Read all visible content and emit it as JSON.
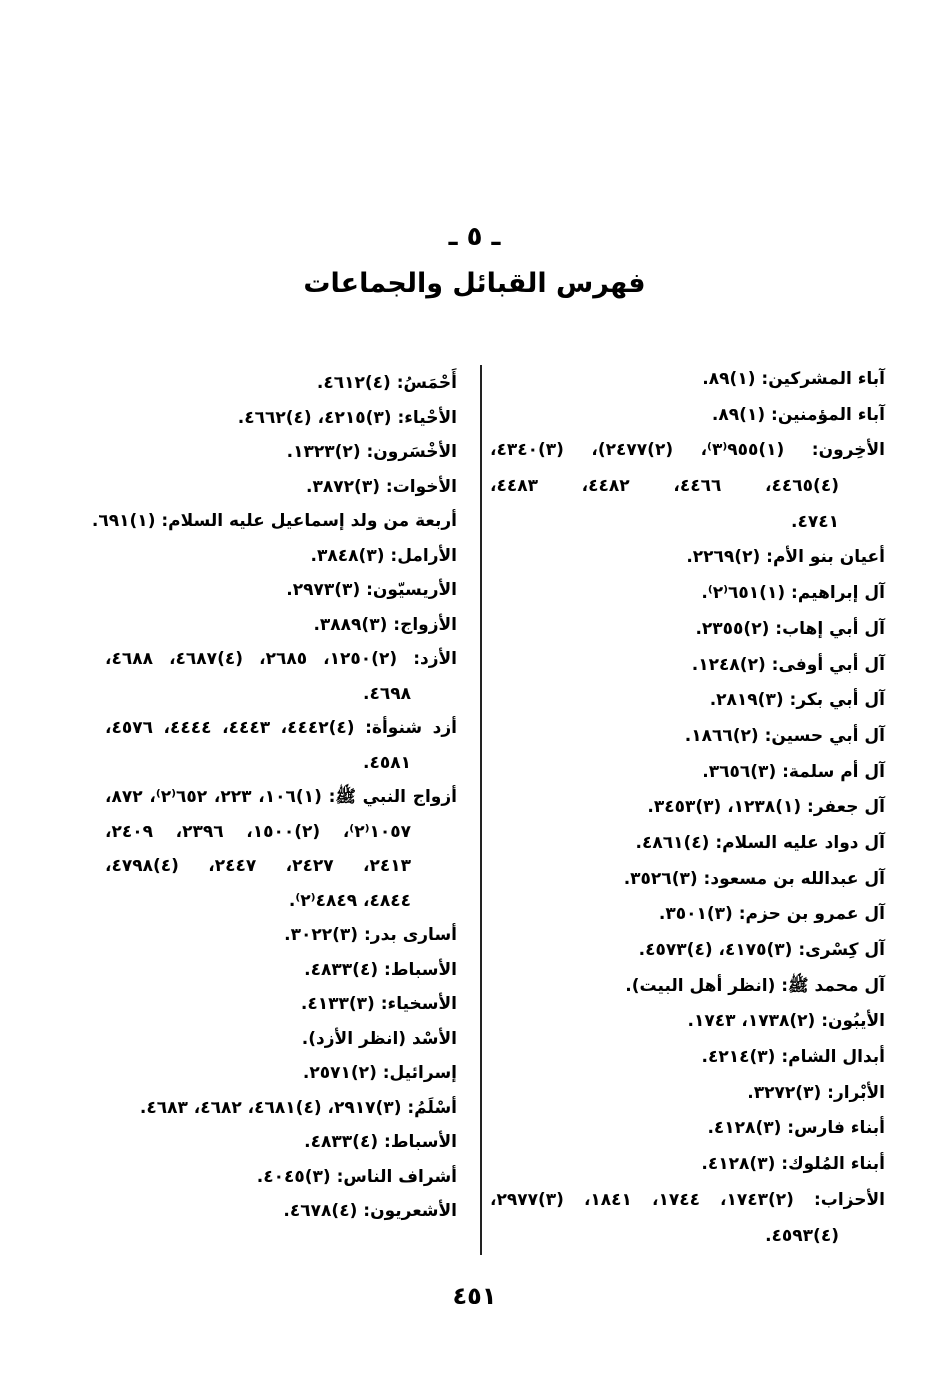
{
  "header": {
    "section_number": "ـ ٥ ـ",
    "title": "فهرس القبائل والجماعات"
  },
  "columns": {
    "right": [
      {
        "lines": [
          "آباء المشركين: (١)٨٩."
        ]
      },
      {
        "lines": [
          "آباء المؤمنين: (١)٨٩."
        ]
      },
      {
        "lines": [
          "الأخِرون: (١)٩٥٥⁽٣⁾، (٢)٢٤٧٧)، (٣)٤٣٤٠،",
          "(٤)٤٤٦٥، ٤٤٦٦، ٤٤٨٢، ٤٤٨٣،",
          "٤٧٤١."
        ]
      },
      {
        "lines": [
          "أعيان بنو الأم: (٢)٢٢٦٩."
        ]
      },
      {
        "lines": [
          "آل إبراهيم: (١)٦٥١⁽٢⁾."
        ]
      },
      {
        "lines": [
          "آل أبي إهاب: (٢)٢٣٥٥."
        ]
      },
      {
        "lines": [
          "آل أبي أوفى: (٢)١٢٤٨."
        ]
      },
      {
        "lines": [
          "آل أبي بكر: (٣)٢٨١٩."
        ]
      },
      {
        "lines": [
          "آل أبي حسين: (٢)١٨٦٦."
        ]
      },
      {
        "lines": [
          "آل أم سلمة: (٣)٣٦٥٦."
        ]
      },
      {
        "lines": [
          "آل جعفر: (١)١٢٣٨، (٣)٣٤٥٣."
        ]
      },
      {
        "lines": [
          "آل دواد عليه السلام: (٤)٤٨٦١."
        ]
      },
      {
        "lines": [
          "آل عبدالله بن مسعود: (٣)٣٥٢٦."
        ]
      },
      {
        "lines": [
          "آل عمرو بن حزم: (٣)٣٥٠١."
        ]
      },
      {
        "lines": [
          "آل كِسْرى: (٣)٤١٧٥، (٤)٤٥٧٣."
        ]
      },
      {
        "lines": [
          "آل محمد ﷺ: (انظر أهل البيت)."
        ]
      },
      {
        "lines": [
          "الأيبُون: (٢)١٧٣٨، ١٧٤٣."
        ]
      },
      {
        "lines": [
          "أبدال الشام: (٣)٤٢١٤."
        ]
      },
      {
        "lines": [
          "الأبْرار: (٣)٣٢٧٢."
        ]
      },
      {
        "lines": [
          "أبناء فارس: (٣)٤١٢٨."
        ]
      },
      {
        "lines": [
          "أبناء المُلوك: (٣)٤١٢٨."
        ]
      },
      {
        "lines": [
          "الأحزاب: (٢)١٧٤٣، ١٧٤٤، ١٨٤١، (٣)٢٩٧٧،",
          "(٤)٤٥٩٣."
        ]
      }
    ],
    "left": [
      {
        "lines": [
          "أَحْمَسُ: (٤)٤٦١٢."
        ]
      },
      {
        "lines": [
          "الأحْياء: (٣)٤٢١٥، (٤)٤٦٦٢."
        ]
      },
      {
        "lines": [
          "الأخْسَرون: (٢)١٣٢٣."
        ]
      },
      {
        "lines": [
          "الأخوات: (٣)٣٨٧٢."
        ]
      },
      {
        "lines": [
          "أربعة من ولد إسماعيل عليه السلام: (١)٦٩١."
        ]
      },
      {
        "lines": [
          "الأرامل: (٣)٣٨٤٨."
        ]
      },
      {
        "lines": [
          "الأريسيّون: (٣)٢٩٧٣."
        ]
      },
      {
        "lines": [
          "الأزواج: (٣)٣٨٨٩."
        ]
      },
      {
        "lines": [
          "الأزد: (٢)١٢٥٠، ٢٦٨٥، (٤)٤٦٨٧، ٤٦٨٨،",
          "٤٦٩٨."
        ]
      },
      {
        "lines": [
          "أزد شنوأة: (٤)٤٤٤٢، ٤٤٤٣، ٤٤٤٤، ٤٥٧٦،",
          "٤٥٨١."
        ]
      },
      {
        "lines": [
          "أزواج النبي ﷺ: (١)١٠٦، ٢٢٣، ٦٥٢⁽٢⁾، ٨٧٢،",
          "١٠٥٧⁽٢⁾، (٢)١٥٠٠، ٢٣٩٦، ٢٤٠٩،",
          "٢٤١٣، ٢٤٢٧، ٢٤٤٧، (٤)٤٧٩٨،",
          "٤٨٤٤، ٤٨٤٩⁽٢⁾."
        ]
      },
      {
        "lines": [
          "أسارى بدر: (٣)٣٠٢٢."
        ]
      },
      {
        "lines": [
          "الأسباط: (٤)٤٨٣٣."
        ]
      },
      {
        "lines": [
          "الأسخياء: (٣)٤١٣٣."
        ]
      },
      {
        "lines": [
          "الأسْد (انظر الأزد)."
        ]
      },
      {
        "lines": [
          "إسرائيل: (٢)٢٥٧١."
        ]
      },
      {
        "lines": [
          "أسْلَمُ: (٣)٢٩١٧، (٤)٤٦٨١، ٤٦٨٢، ٤٦٨٣."
        ]
      },
      {
        "lines": [
          "الأسباط: (٤)٤٨٣٣."
        ]
      },
      {
        "lines": [
          "أشراف الناس: (٣)٤٠٤٥."
        ]
      },
      {
        "lines": [
          "الأشعريون: (٤)٤٦٧٨."
        ]
      }
    ]
  },
  "footer": {
    "page_number": "٤٥١"
  }
}
